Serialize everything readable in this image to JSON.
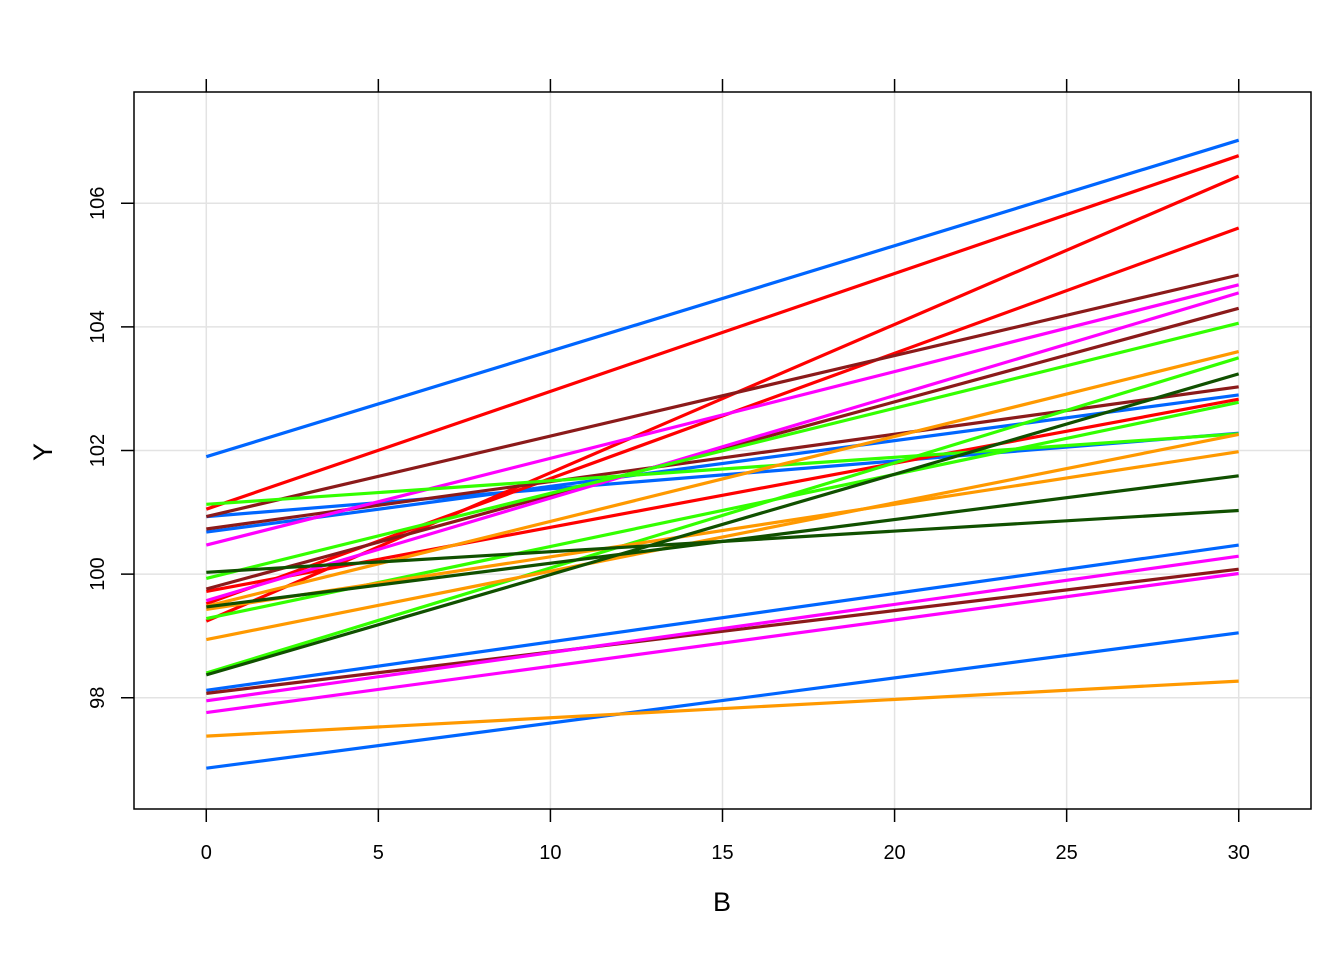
{
  "chart_data": {
    "type": "line",
    "title": "",
    "xlabel": "B",
    "ylabel": "Y",
    "xlim": [
      -2.1,
      32.1
    ],
    "ylim": [
      96.2,
      107.8
    ],
    "x_ticks": [
      "0",
      "5",
      "10",
      "15",
      "20",
      "25",
      "30"
    ],
    "y_ticks": [
      "98",
      "100",
      "102",
      "104",
      "106"
    ],
    "grid": true,
    "legend": "none",
    "series": [
      {
        "color": "#0066FF",
        "x": [
          0,
          30
        ],
        "y": [
          101.9,
          107.02
        ]
      },
      {
        "color": "#0066FF",
        "x": [
          0,
          30
        ],
        "y": [
          100.93,
          102.28
        ]
      },
      {
        "color": "#0066FF",
        "x": [
          0,
          30
        ],
        "y": [
          100.68,
          102.9
        ]
      },
      {
        "color": "#0066FF",
        "x": [
          0,
          30
        ],
        "y": [
          98.12,
          100.47
        ]
      },
      {
        "color": "#0066FF",
        "x": [
          0,
          30
        ],
        "y": [
          96.86,
          99.05
        ]
      },
      {
        "color": "#FF0000",
        "x": [
          0,
          30
        ],
        "y": [
          101.05,
          106.77
        ]
      },
      {
        "color": "#FF0000",
        "x": [
          0,
          30
        ],
        "y": [
          99.24,
          106.44
        ]
      },
      {
        "color": "#FF0000",
        "x": [
          0,
          30
        ],
        "y": [
          99.52,
          105.6
        ]
      },
      {
        "color": "#FF0000",
        "x": [
          0,
          30
        ],
        "y": [
          99.72,
          102.83
        ]
      },
      {
        "color": "#8B1A1A",
        "x": [
          0,
          30
        ],
        "y": [
          100.93,
          104.84
        ]
      },
      {
        "color": "#8B1A1A",
        "x": [
          0,
          30
        ],
        "y": [
          100.73,
          103.03
        ]
      },
      {
        "color": "#8B1A1A",
        "x": [
          0,
          30
        ],
        "y": [
          99.76,
          104.3
        ]
      },
      {
        "color": "#8B1A1A",
        "x": [
          0,
          30
        ],
        "y": [
          98.07,
          100.08
        ]
      },
      {
        "color": "#FF00FF",
        "x": [
          0,
          30
        ],
        "y": [
          100.47,
          104.68
        ]
      },
      {
        "color": "#FF00FF",
        "x": [
          0,
          30
        ],
        "y": [
          99.57,
          104.55
        ]
      },
      {
        "color": "#FF00FF",
        "x": [
          0,
          30
        ],
        "y": [
          97.95,
          100.29
        ]
      },
      {
        "color": "#FF00FF",
        "x": [
          0,
          30
        ],
        "y": [
          97.76,
          100.01
        ]
      },
      {
        "color": "#33FF00",
        "x": [
          0,
          30
        ],
        "y": [
          101.13,
          102.27
        ]
      },
      {
        "color": "#33FF00",
        "x": [
          0,
          30
        ],
        "y": [
          99.93,
          104.06
        ]
      },
      {
        "color": "#33FF00",
        "x": [
          0,
          30
        ],
        "y": [
          99.28,
          102.78
        ]
      },
      {
        "color": "#33FF00",
        "x": [
          0,
          30
        ],
        "y": [
          98.4,
          103.5
        ]
      },
      {
        "color": "#FF9900",
        "x": [
          0,
          30
        ],
        "y": [
          99.48,
          103.6
        ]
      },
      {
        "color": "#FF9900",
        "x": [
          0,
          30
        ],
        "y": [
          99.43,
          101.98
        ]
      },
      {
        "color": "#FF9900",
        "x": [
          0,
          30
        ],
        "y": [
          98.94,
          102.26
        ]
      },
      {
        "color": "#FF9900",
        "x": [
          0,
          30
        ],
        "y": [
          97.38,
          98.27
        ]
      },
      {
        "color": "#105000",
        "x": [
          0,
          30
        ],
        "y": [
          100.03,
          101.03
        ]
      },
      {
        "color": "#105000",
        "x": [
          0,
          30
        ],
        "y": [
          99.47,
          101.59
        ]
      },
      {
        "color": "#105000",
        "x": [
          0,
          30
        ],
        "y": [
          98.37,
          103.24
        ]
      }
    ]
  }
}
